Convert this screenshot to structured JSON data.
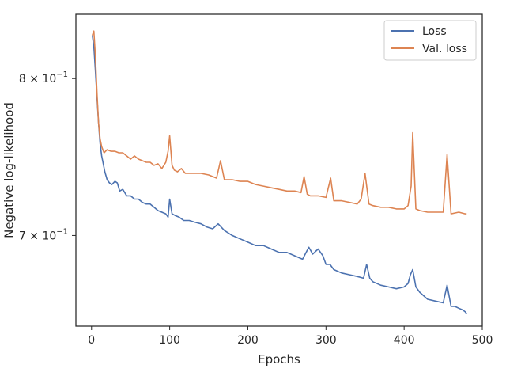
{
  "chart_data": {
    "type": "line",
    "xlabel": "Epochs",
    "ylabel": "Negative log-likelihood",
    "x_range": [
      -20,
      500
    ],
    "y_range": [
      0.648,
      0.845
    ],
    "y_scale": "log",
    "x_ticks": [
      {
        "value": 0,
        "label": "0"
      },
      {
        "value": 100,
        "label": "100"
      },
      {
        "value": 200,
        "label": "200"
      },
      {
        "value": 300,
        "label": "300"
      },
      {
        "value": 400,
        "label": "400"
      },
      {
        "value": 500,
        "label": "500"
      }
    ],
    "y_ticks": [
      {
        "value": 0.7,
        "base": "7 × 10",
        "exp": "−1"
      },
      {
        "value": 0.8,
        "base": "8 × 10",
        "exp": "−1"
      }
    ],
    "legend_position": "top-right",
    "grid": false,
    "series": [
      {
        "name": "Loss",
        "color": "#4c72b0",
        "x": [
          1,
          3,
          5,
          7,
          9,
          11,
          13,
          15,
          17,
          20,
          23,
          26,
          30,
          33,
          36,
          40,
          45,
          50,
          55,
          60,
          65,
          70,
          75,
          80,
          85,
          90,
          95,
          98,
          100,
          103,
          107,
          112,
          118,
          125,
          132,
          140,
          148,
          155,
          162,
          170,
          180,
          190,
          200,
          210,
          220,
          230,
          240,
          250,
          260,
          270,
          278,
          283,
          290,
          296,
          300,
          305,
          310,
          320,
          330,
          340,
          348,
          352,
          356,
          360,
          370,
          380,
          390,
          400,
          405,
          408,
          411,
          415,
          420,
          430,
          440,
          450,
          455,
          460,
          465,
          470,
          475,
          478,
          480
        ],
        "values": [
          0.83,
          0.822,
          0.805,
          0.787,
          0.77,
          0.757,
          0.749,
          0.744,
          0.739,
          0.734,
          0.732,
          0.731,
          0.733,
          0.732,
          0.727,
          0.728,
          0.724,
          0.724,
          0.722,
          0.722,
          0.72,
          0.719,
          0.719,
          0.717,
          0.715,
          0.714,
          0.713,
          0.711,
          0.722,
          0.713,
          0.712,
          0.711,
          0.709,
          0.709,
          0.708,
          0.707,
          0.705,
          0.704,
          0.707,
          0.703,
          0.7,
          0.698,
          0.696,
          0.694,
          0.694,
          0.692,
          0.69,
          0.69,
          0.688,
          0.686,
          0.693,
          0.689,
          0.692,
          0.688,
          0.683,
          0.683,
          0.68,
          0.678,
          0.677,
          0.676,
          0.675,
          0.683,
          0.675,
          0.673,
          0.671,
          0.67,
          0.669,
          0.67,
          0.672,
          0.677,
          0.68,
          0.67,
          0.667,
          0.663,
          0.662,
          0.661,
          0.671,
          0.659,
          0.659,
          0.658,
          0.657,
          0.656,
          0.655
        ]
      },
      {
        "name": "Val. loss",
        "color": "#dd8452",
        "x": [
          1,
          3,
          5,
          7,
          9,
          11,
          13,
          16,
          20,
          25,
          30,
          35,
          40,
          45,
          50,
          55,
          60,
          65,
          70,
          75,
          80,
          85,
          90,
          95,
          98,
          100,
          103,
          106,
          110,
          115,
          120,
          130,
          140,
          150,
          160,
          165,
          170,
          180,
          190,
          200,
          210,
          220,
          230,
          240,
          250,
          260,
          268,
          272,
          276,
          280,
          290,
          300,
          306,
          310,
          320,
          330,
          340,
          345,
          350,
          355,
          360,
          370,
          380,
          390,
          400,
          405,
          409,
          411,
          415,
          420,
          430,
          440,
          450,
          455,
          460,
          470,
          478,
          480
        ],
        "values": [
          0.83,
          0.833,
          0.815,
          0.79,
          0.77,
          0.76,
          0.755,
          0.751,
          0.753,
          0.752,
          0.752,
          0.751,
          0.751,
          0.749,
          0.747,
          0.749,
          0.747,
          0.746,
          0.745,
          0.745,
          0.743,
          0.744,
          0.741,
          0.745,
          0.752,
          0.762,
          0.743,
          0.74,
          0.739,
          0.741,
          0.738,
          0.738,
          0.738,
          0.737,
          0.735,
          0.746,
          0.734,
          0.734,
          0.733,
          0.733,
          0.731,
          0.73,
          0.729,
          0.728,
          0.727,
          0.727,
          0.726,
          0.736,
          0.725,
          0.724,
          0.724,
          0.723,
          0.735,
          0.721,
          0.721,
          0.72,
          0.719,
          0.722,
          0.738,
          0.719,
          0.718,
          0.717,
          0.717,
          0.716,
          0.716,
          0.718,
          0.73,
          0.764,
          0.716,
          0.715,
          0.714,
          0.714,
          0.714,
          0.75,
          0.713,
          0.714,
          0.713,
          0.713
        ]
      }
    ]
  }
}
